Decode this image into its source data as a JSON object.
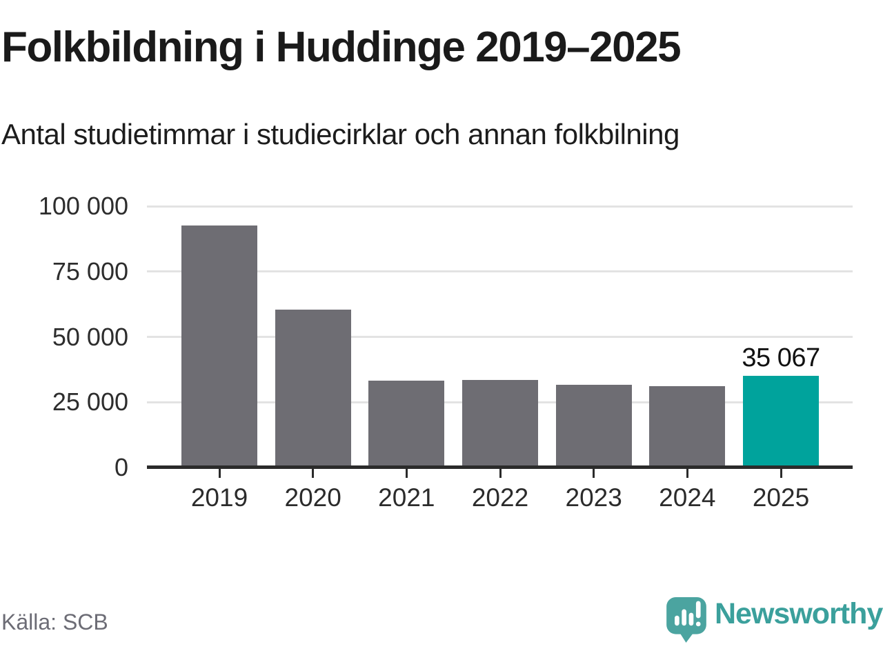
{
  "title": "Folkbildning i Huddinge 2019–2025",
  "subtitle": "Antal studietimmar i studiecirklar och annan folkbilning",
  "source": "Källa: SCB",
  "brand": {
    "name": "Newsworthy",
    "icon": "newsworthy-speech-bubble-bar-chart-icon",
    "text_color": "#3ba09c",
    "icon_color": "#4ba4a0"
  },
  "colors": {
    "bar": "#6e6d73",
    "highlight": "#00a39c",
    "gridline": "#e3e3e3",
    "axis": "#2b2b2b",
    "label_text": "#2d2d2d",
    "value_label_text": "#111111",
    "muted_text": "#6c6c75"
  },
  "chart_data": {
    "type": "bar",
    "title": "Folkbildning i Huddinge 2019–2025",
    "subtitle": "Antal studietimmar i studiecirklar och annan folkbilning",
    "categories": [
      "2019",
      "2020",
      "2021",
      "2022",
      "2023",
      "2024",
      "2025"
    ],
    "values": [
      92700,
      60400,
      33200,
      33400,
      31600,
      31200,
      35067
    ],
    "highlight_index": 6,
    "annotations": [
      {
        "category": "2025",
        "text": "35 067"
      }
    ],
    "xlabel": "",
    "ylabel": "",
    "ylim": [
      0,
      100000
    ],
    "ytick_values": [
      0,
      25000,
      50000,
      75000,
      100000
    ],
    "ytick_labels": [
      "0",
      "25 000",
      "50 000",
      "75 000",
      "100 000"
    ],
    "grid": "horizontal",
    "legend": "none",
    "source": "Källa: SCB"
  }
}
